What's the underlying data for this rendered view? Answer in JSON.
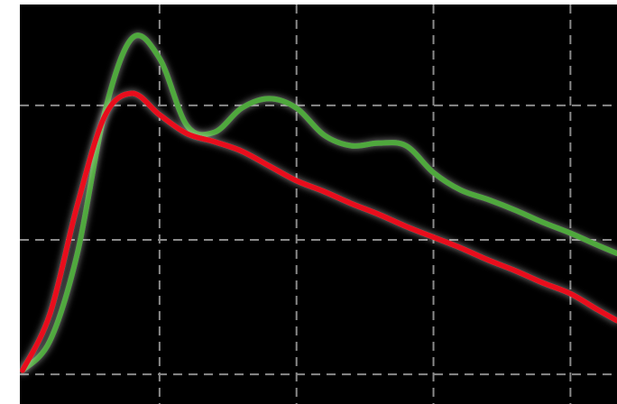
{
  "chart_data": {
    "type": "line",
    "x": [
      0,
      0.2,
      0.4,
      0.6,
      0.8,
      1.0,
      1.2,
      1.4,
      1.6,
      1.8,
      2.0,
      2.2,
      2.4,
      2.6,
      2.8,
      3.0,
      3.2,
      3.4,
      3.6,
      3.8,
      4.0,
      4.2,
      4.34
    ],
    "series": [
      {
        "color": "#4fa83d",
        "values": [
          0.03,
          0.25,
          0.9,
          1.95,
          2.5,
          2.35,
          1.85,
          1.8,
          1.98,
          2.05,
          1.98,
          1.78,
          1.7,
          1.72,
          1.7,
          1.5,
          1.37,
          1.3,
          1.22,
          1.13,
          1.05,
          0.96,
          0.9
        ]
      },
      {
        "color": "#e8101e",
        "values": [
          0.03,
          0.45,
          1.26,
          1.92,
          2.09,
          1.93,
          1.79,
          1.73,
          1.66,
          1.55,
          1.44,
          1.36,
          1.27,
          1.19,
          1.1,
          1.02,
          0.94,
          0.85,
          0.77,
          0.68,
          0.6,
          0.48,
          0.4
        ]
      }
    ],
    "xlim": [
      -0.02,
      4.34
    ],
    "ylim": [
      -0.22,
      2.75
    ],
    "xticks": [
      1,
      2,
      3,
      4
    ],
    "yticks": [
      0,
      1,
      2
    ],
    "grid": true
  }
}
